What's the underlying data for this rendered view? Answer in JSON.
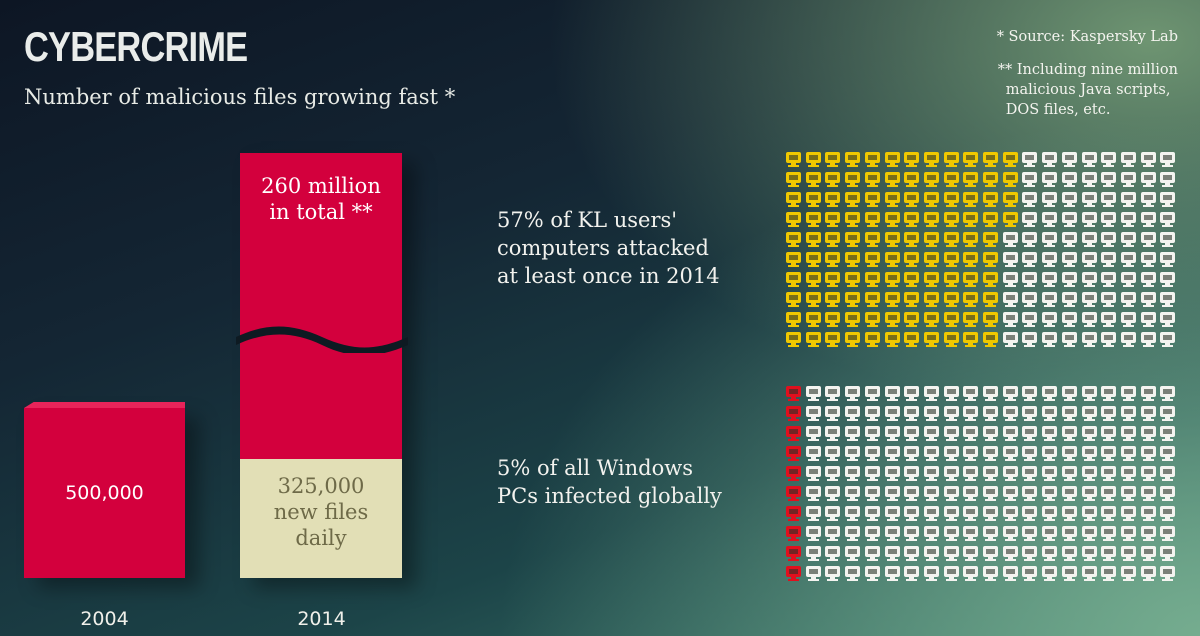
{
  "header": {
    "title": "CYBERCRIME",
    "subtitle": "Number of malicious files growing fast *"
  },
  "notes": {
    "source": "* Source: Kaspersky Lab",
    "footnote_lines": [
      "** Including nine million",
      "malicious Java scripts,",
      "DOS files, etc."
    ]
  },
  "chart_data": [
    {
      "type": "bar",
      "categories": [
        "2004",
        "2014"
      ],
      "values": [
        500000,
        260000000
      ],
      "axis_break": true,
      "data_labels": {
        "2004": "500,000",
        "2014_total": [
          "260 million",
          "in total **"
        ],
        "2014_daily": [
          "325,000",
          "new files",
          "daily"
        ]
      },
      "daily_new_files_2014": 325000,
      "colors": {
        "bar": "#d3003d",
        "daily": "#e2dfb6"
      }
    },
    {
      "type": "waffle",
      "label": [
        "57% of KL users'",
        "computers attacked",
        "at least once in 2014"
      ],
      "percent": 57,
      "total_icons": 200,
      "highlighted_icons": 114,
      "columns": 20,
      "rows": 10,
      "icon": "computer-monitor-icon",
      "colors": {
        "highlight": "#f0c800",
        "rest": "#f4f4f0"
      }
    },
    {
      "type": "waffle",
      "label": [
        "5% of all Windows",
        "PCs infected globally"
      ],
      "percent": 5,
      "total_icons": 200,
      "highlighted_icons": 10,
      "columns": 20,
      "rows": 10,
      "icon": "computer-monitor-icon",
      "colors": {
        "highlight": "#e0101e",
        "rest": "#f4f4f0"
      }
    }
  ]
}
